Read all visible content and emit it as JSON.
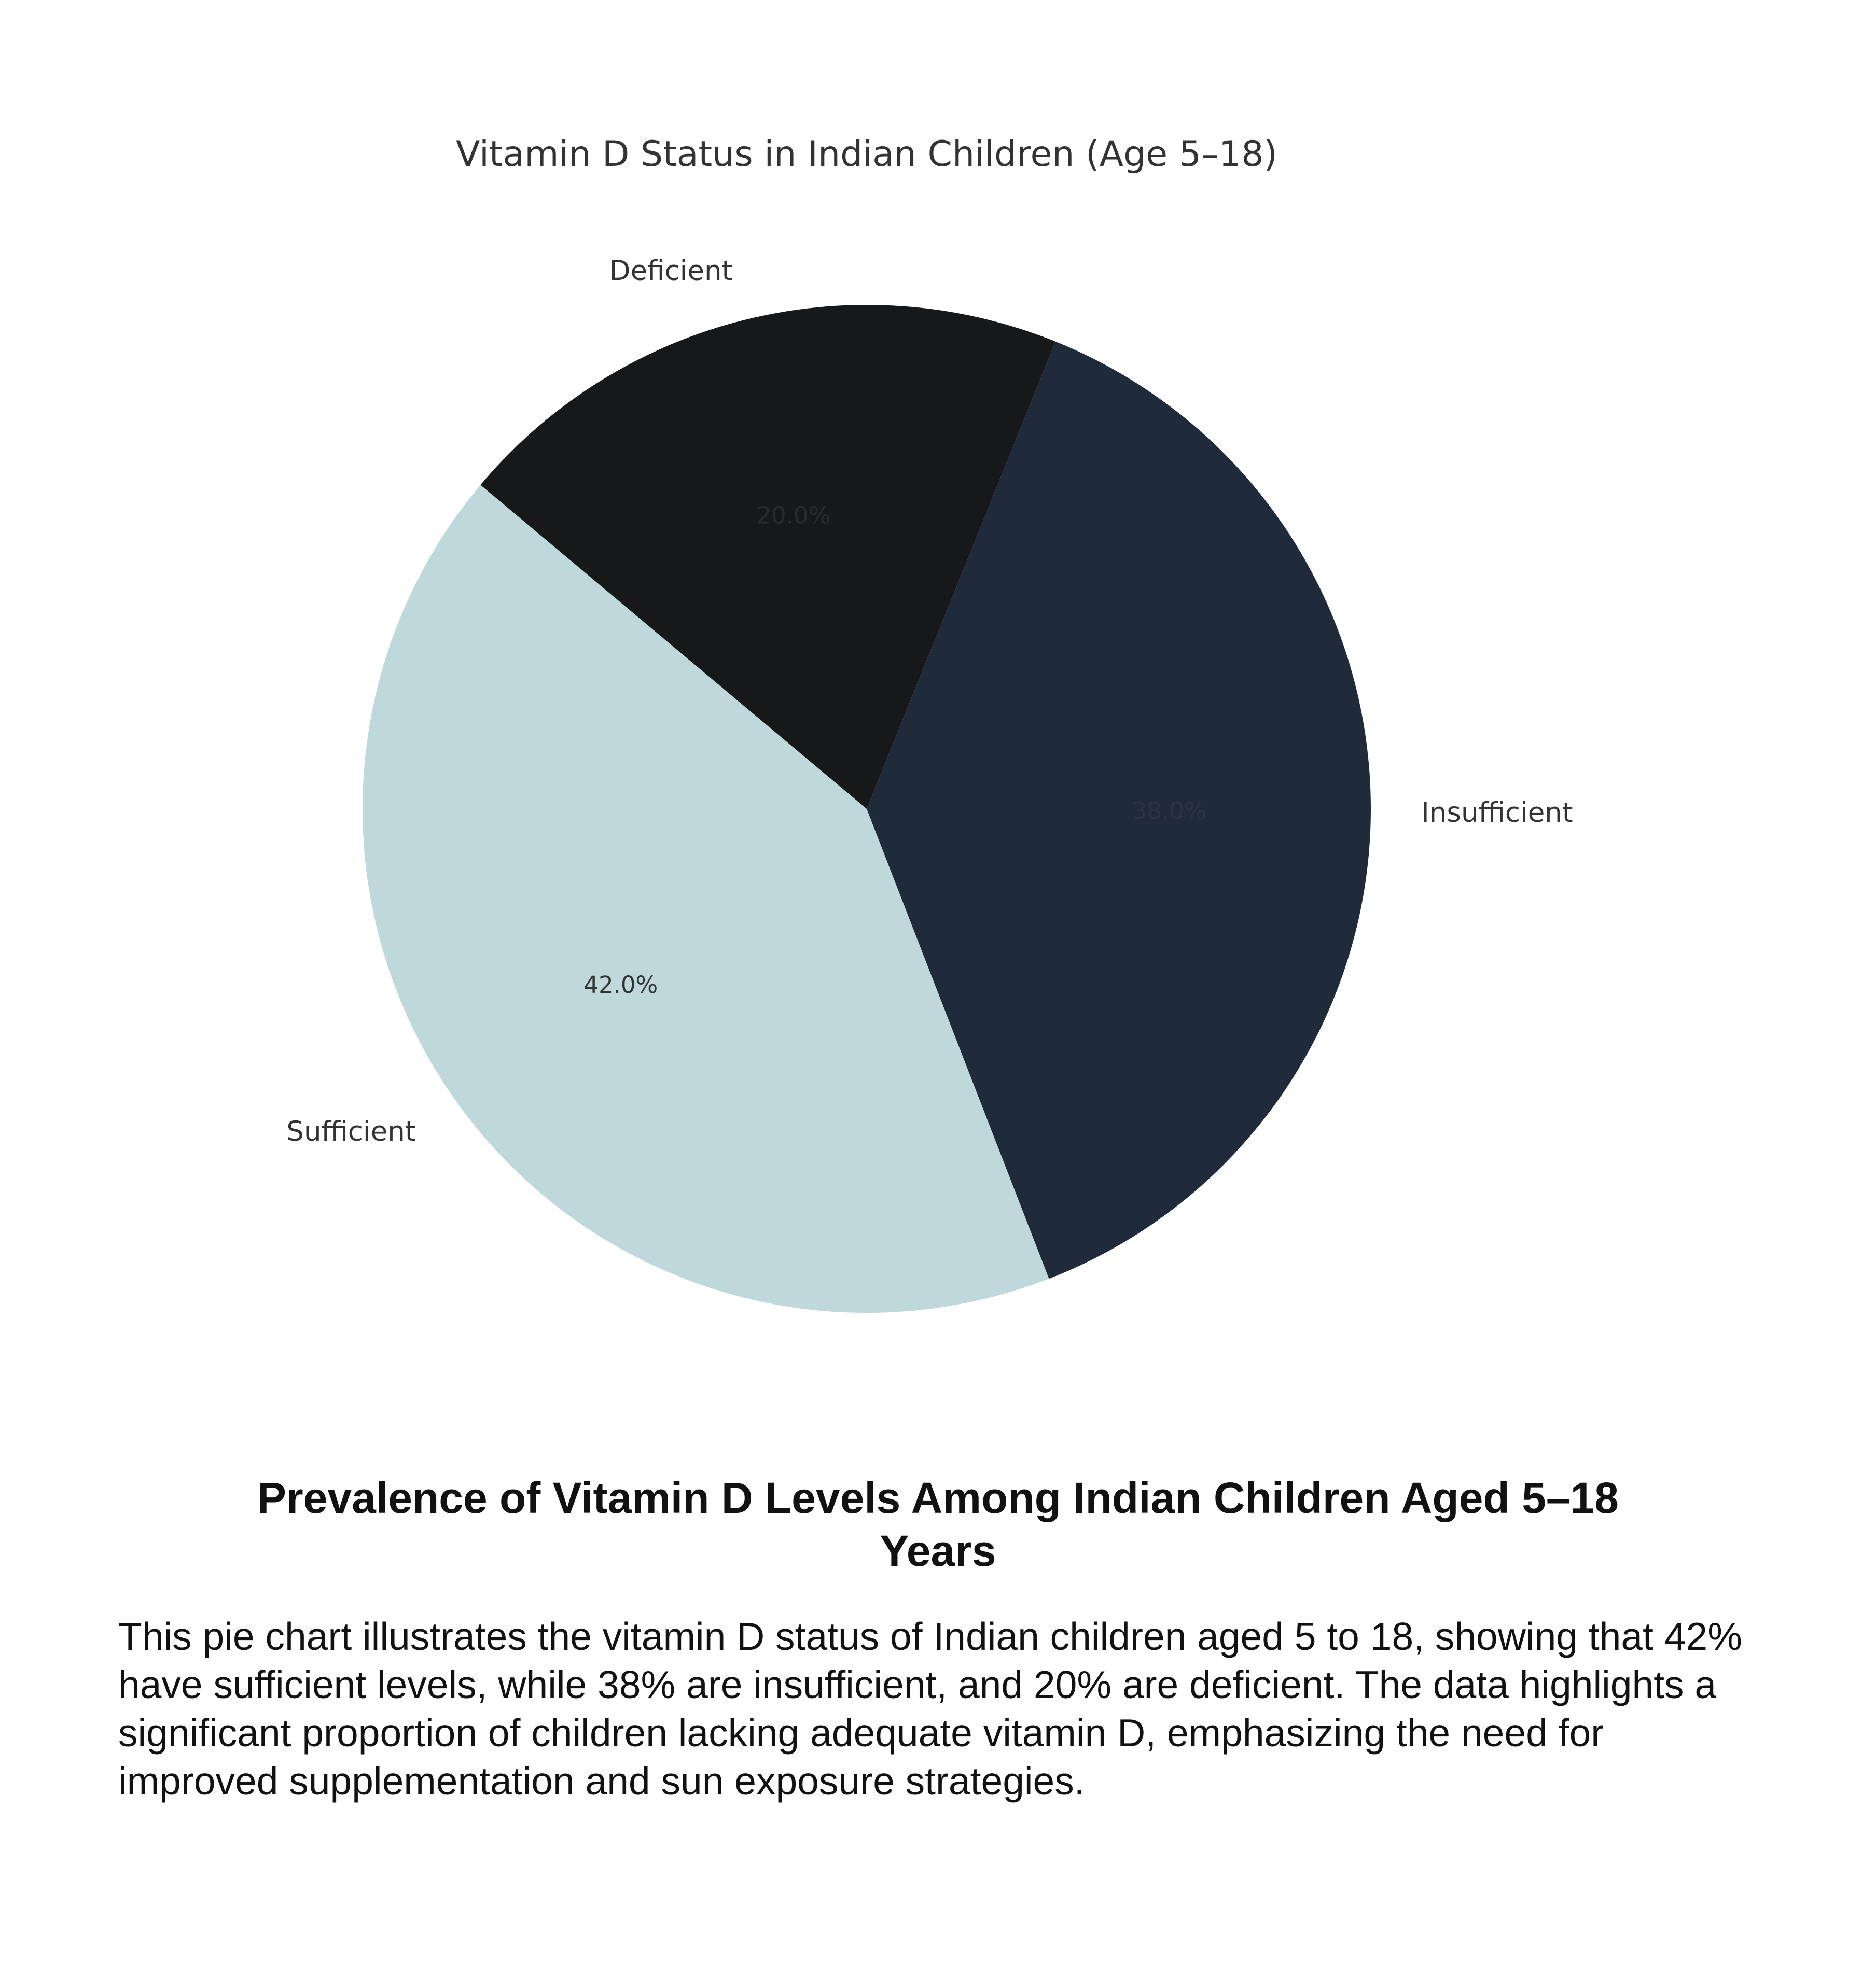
{
  "chart_data": {
    "type": "pie",
    "title": "Vitamin D Status in Indian Children (Age 5–18)",
    "labels": [
      "Sufficient",
      "Insufficient",
      "Deficient"
    ],
    "values": [
      42.0,
      38.0,
      20.0
    ],
    "percent_labels": [
      "42.0%",
      "38.0%",
      "20.0%"
    ],
    "colors": [
      "#bed8dc",
      "#1f2b3a",
      "#171819"
    ],
    "percent_label_colors": [
      "#333333",
      "#2b3442",
      "#2b2b2b"
    ],
    "start_angle_degrees": 140,
    "direction": "counterclockwise",
    "legend": "none"
  },
  "caption": {
    "title": "Prevalence of Vitamin D Levels Among Indian Children Aged 5–18 Years",
    "body": "This pie chart illustrates the vitamin D status of Indian children aged 5 to 18, showing that 42% have sufficient levels, while 38% are insufficient, and 20% are deficient. The data highlights a significant proportion of children lacking adequate vitamin D, emphasizing the need for improved supplementation and sun exposure strategies."
  }
}
